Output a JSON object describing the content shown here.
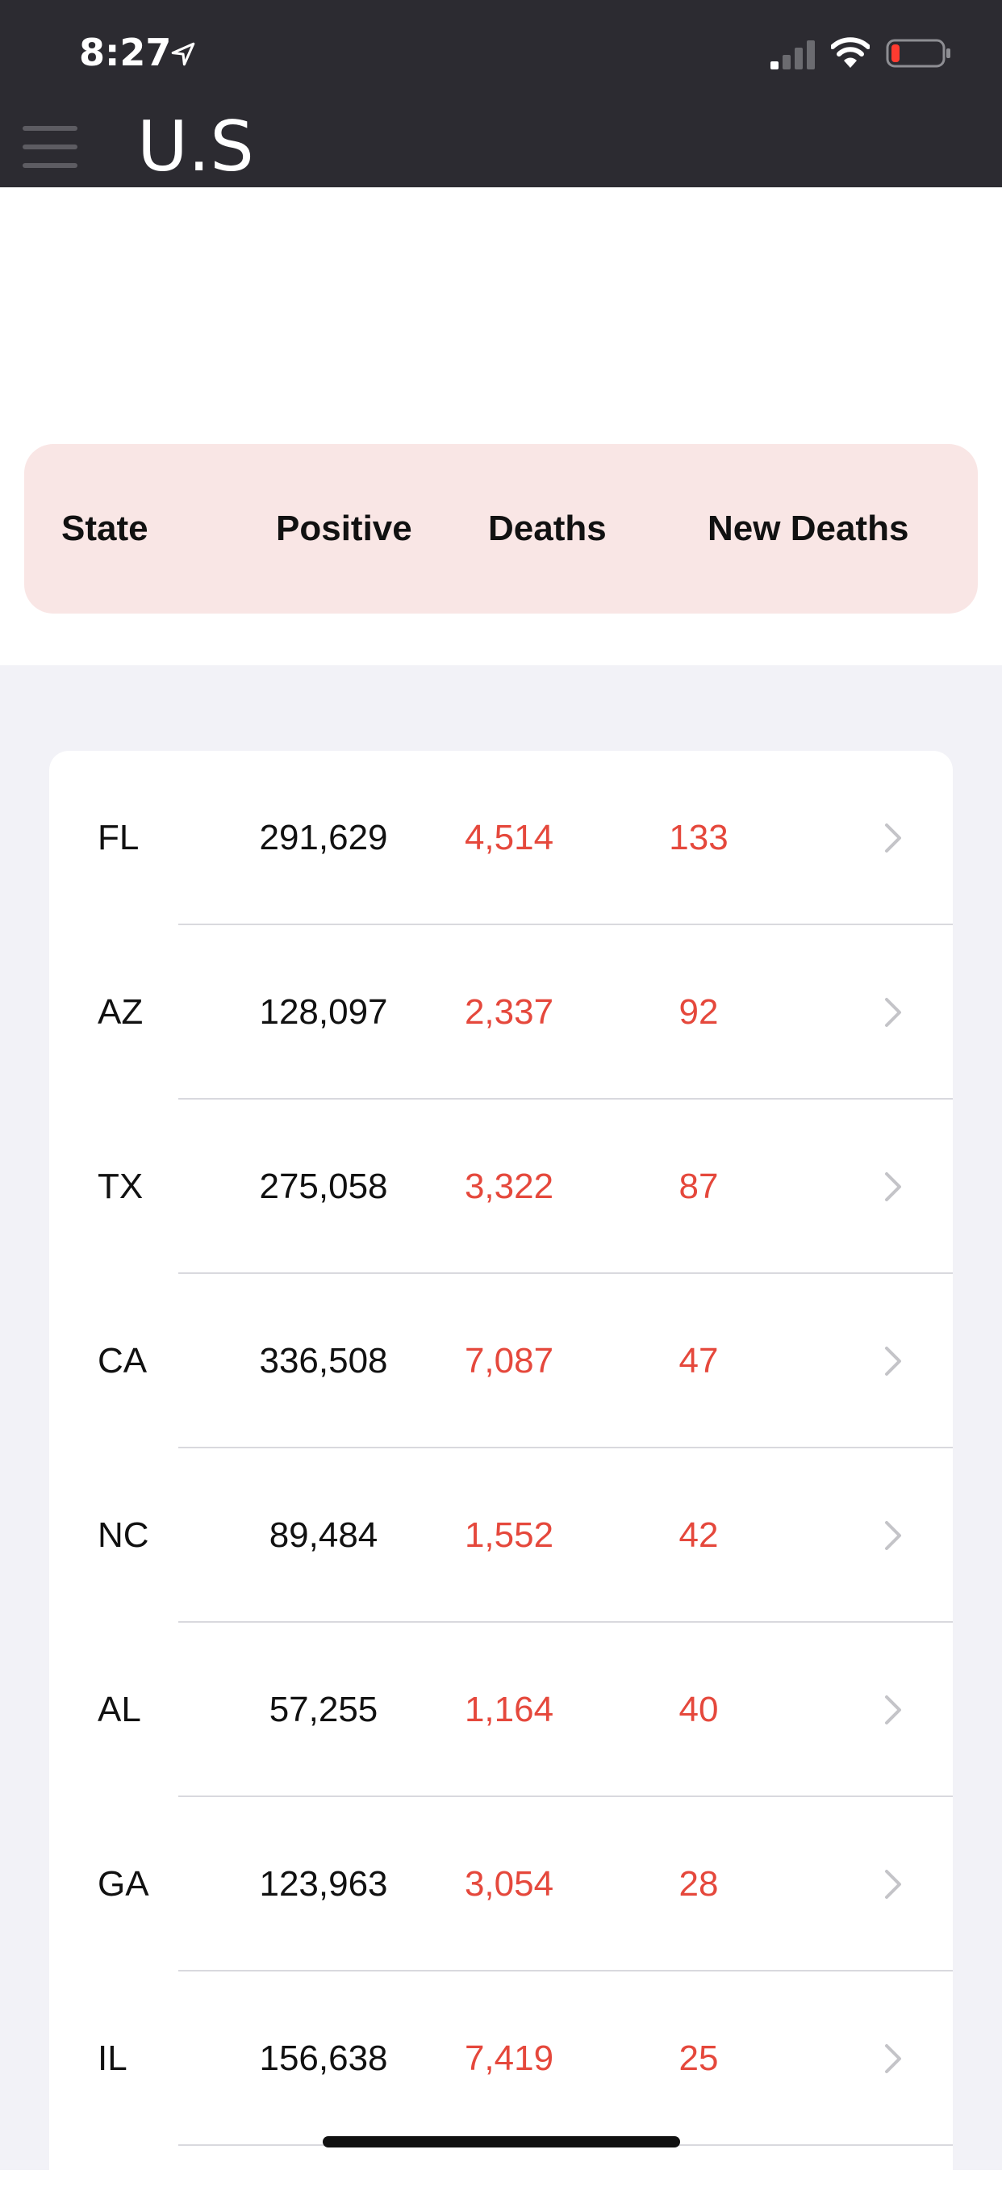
{
  "status_bar": {
    "time": "8:27"
  },
  "nav": {
    "title": "U.S"
  },
  "table": {
    "headers": {
      "state": "State",
      "positive": "Positive",
      "deaths": "Deaths",
      "new_deaths": "New Deaths"
    },
    "rows": [
      {
        "state": "FL",
        "positive": "291,629",
        "deaths": "4,514",
        "new_deaths": "133"
      },
      {
        "state": "AZ",
        "positive": "128,097",
        "deaths": "2,337",
        "new_deaths": "92"
      },
      {
        "state": "TX",
        "positive": "275,058",
        "deaths": "3,322",
        "new_deaths": "87"
      },
      {
        "state": "CA",
        "positive": "336,508",
        "deaths": "7,087",
        "new_deaths": "47"
      },
      {
        "state": "NC",
        "positive": "89,484",
        "deaths": "1,552",
        "new_deaths": "42"
      },
      {
        "state": "AL",
        "positive": "57,255",
        "deaths": "1,164",
        "new_deaths": "40"
      },
      {
        "state": "GA",
        "positive": "123,963",
        "deaths": "3,054",
        "new_deaths": "28"
      },
      {
        "state": "IL",
        "positive": "156,638",
        "deaths": "7,419",
        "new_deaths": "25"
      }
    ]
  },
  "colors": {
    "nav_background": "#2c2b31",
    "header_background": "#f9e6e5",
    "death_text": "#e5483c",
    "list_background": "#f2f2f7"
  },
  "icons": [
    "location-arrow-icon",
    "signal-icon",
    "wifi-icon",
    "battery-low-icon",
    "hamburger-menu-icon",
    "chevron-right-icon"
  ]
}
